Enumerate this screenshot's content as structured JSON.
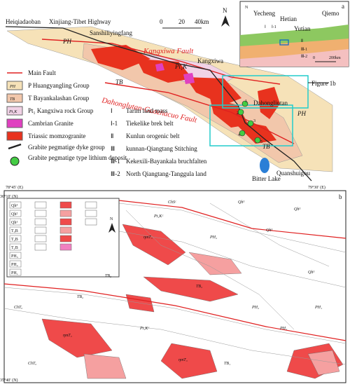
{
  "panel_a": {
    "label": "a",
    "places": [
      "Heiqiadaoban",
      "Xinjiang-Tibet Highway",
      "Sanshiliyingfang",
      "Kangxiwa",
      "Dahongliutan",
      "Quanshuigou",
      "Bitter Lake"
    ],
    "faults": [
      "Kangxiwa Fault",
      "Dahonglutan-Guozhacuo Fault"
    ],
    "units": [
      "PH",
      "TB",
      "Pt₁K",
      "PH",
      "TB"
    ],
    "callout": "Figure 1b",
    "north": "N",
    "scale": [
      "0",
      "20",
      "40km"
    ],
    "deposits": [
      "1",
      "2",
      "3",
      "4",
      "5"
    ],
    "inset": {
      "label": "a",
      "places": [
        "Yecheng",
        "Hetian",
        "Yutian",
        "Qiemo"
      ],
      "zones": [
        "Ⅰ",
        "Ⅰ-1",
        "Ⅱ",
        "Ⅲ-1",
        "Ⅲ-2"
      ],
      "scale": [
        "0",
        "200km"
      ],
      "north": "N"
    },
    "legend": [
      {
        "text": "Main Fault"
      },
      {
        "symbol": "PH",
        "text": "P Huangyangling Group"
      },
      {
        "symbol": "TB",
        "text": "T Bayankalashan Group"
      },
      {
        "symbol": "Pt₁K",
        "text": "Pt₁ Kangxiwa rock Group"
      },
      {
        "text": "Cambrian Granite"
      },
      {
        "text": "Triassic momzogranite"
      },
      {
        "text": "Grabite pegmatige dyke group"
      },
      {
        "text": "Grabite pegmatige type lithium deposit"
      }
    ],
    "tectonic_legend": [
      {
        "symbol": "Ⅰ",
        "text": "Tarim land mass"
      },
      {
        "symbol": "Ⅰ-1",
        "text": "Tiekelike brek belt"
      },
      {
        "symbol": "Ⅱ",
        "text": "Kunlun orogenic belt"
      },
      {
        "symbol": "Ⅲ",
        "text": "kunnan-Qiangtang Stitching"
      },
      {
        "symbol": "Ⅲ-1",
        "text": "Kekexili-Bayankala bruchfalten"
      },
      {
        "symbol": "Ⅲ-2",
        "text": "North Qiangtang-Tanggula land"
      }
    ]
  },
  "panel_b": {
    "label": "b",
    "coords": [
      "78°45′ (E)",
      "79°30′ (E)",
      "36°10′ (N)",
      "35°40′ (N)"
    ],
    "north": "N",
    "legend_codes": [
      "Qh³",
      "Qh²",
      "Qh¹",
      "T₃B",
      "T₂B",
      "T₁B",
      "PH₃",
      "PH₂",
      "PH₁"
    ],
    "units": [
      "Qh¹",
      "Qh¹",
      "Qh¹",
      "PH₂",
      "PH₂",
      "PH₂",
      "Pt₁Kᶜ",
      "Pt₁Kᶜ",
      "TB₂",
      "TB₂",
      "TB₁",
      "ηmT₃",
      "ηmT₃",
      "ηmT₃",
      "ChTₐ",
      "ChTₐ",
      "ChSᶜ",
      "Qh¹",
      "PH₁",
      "TB₂"
    ]
  }
}
